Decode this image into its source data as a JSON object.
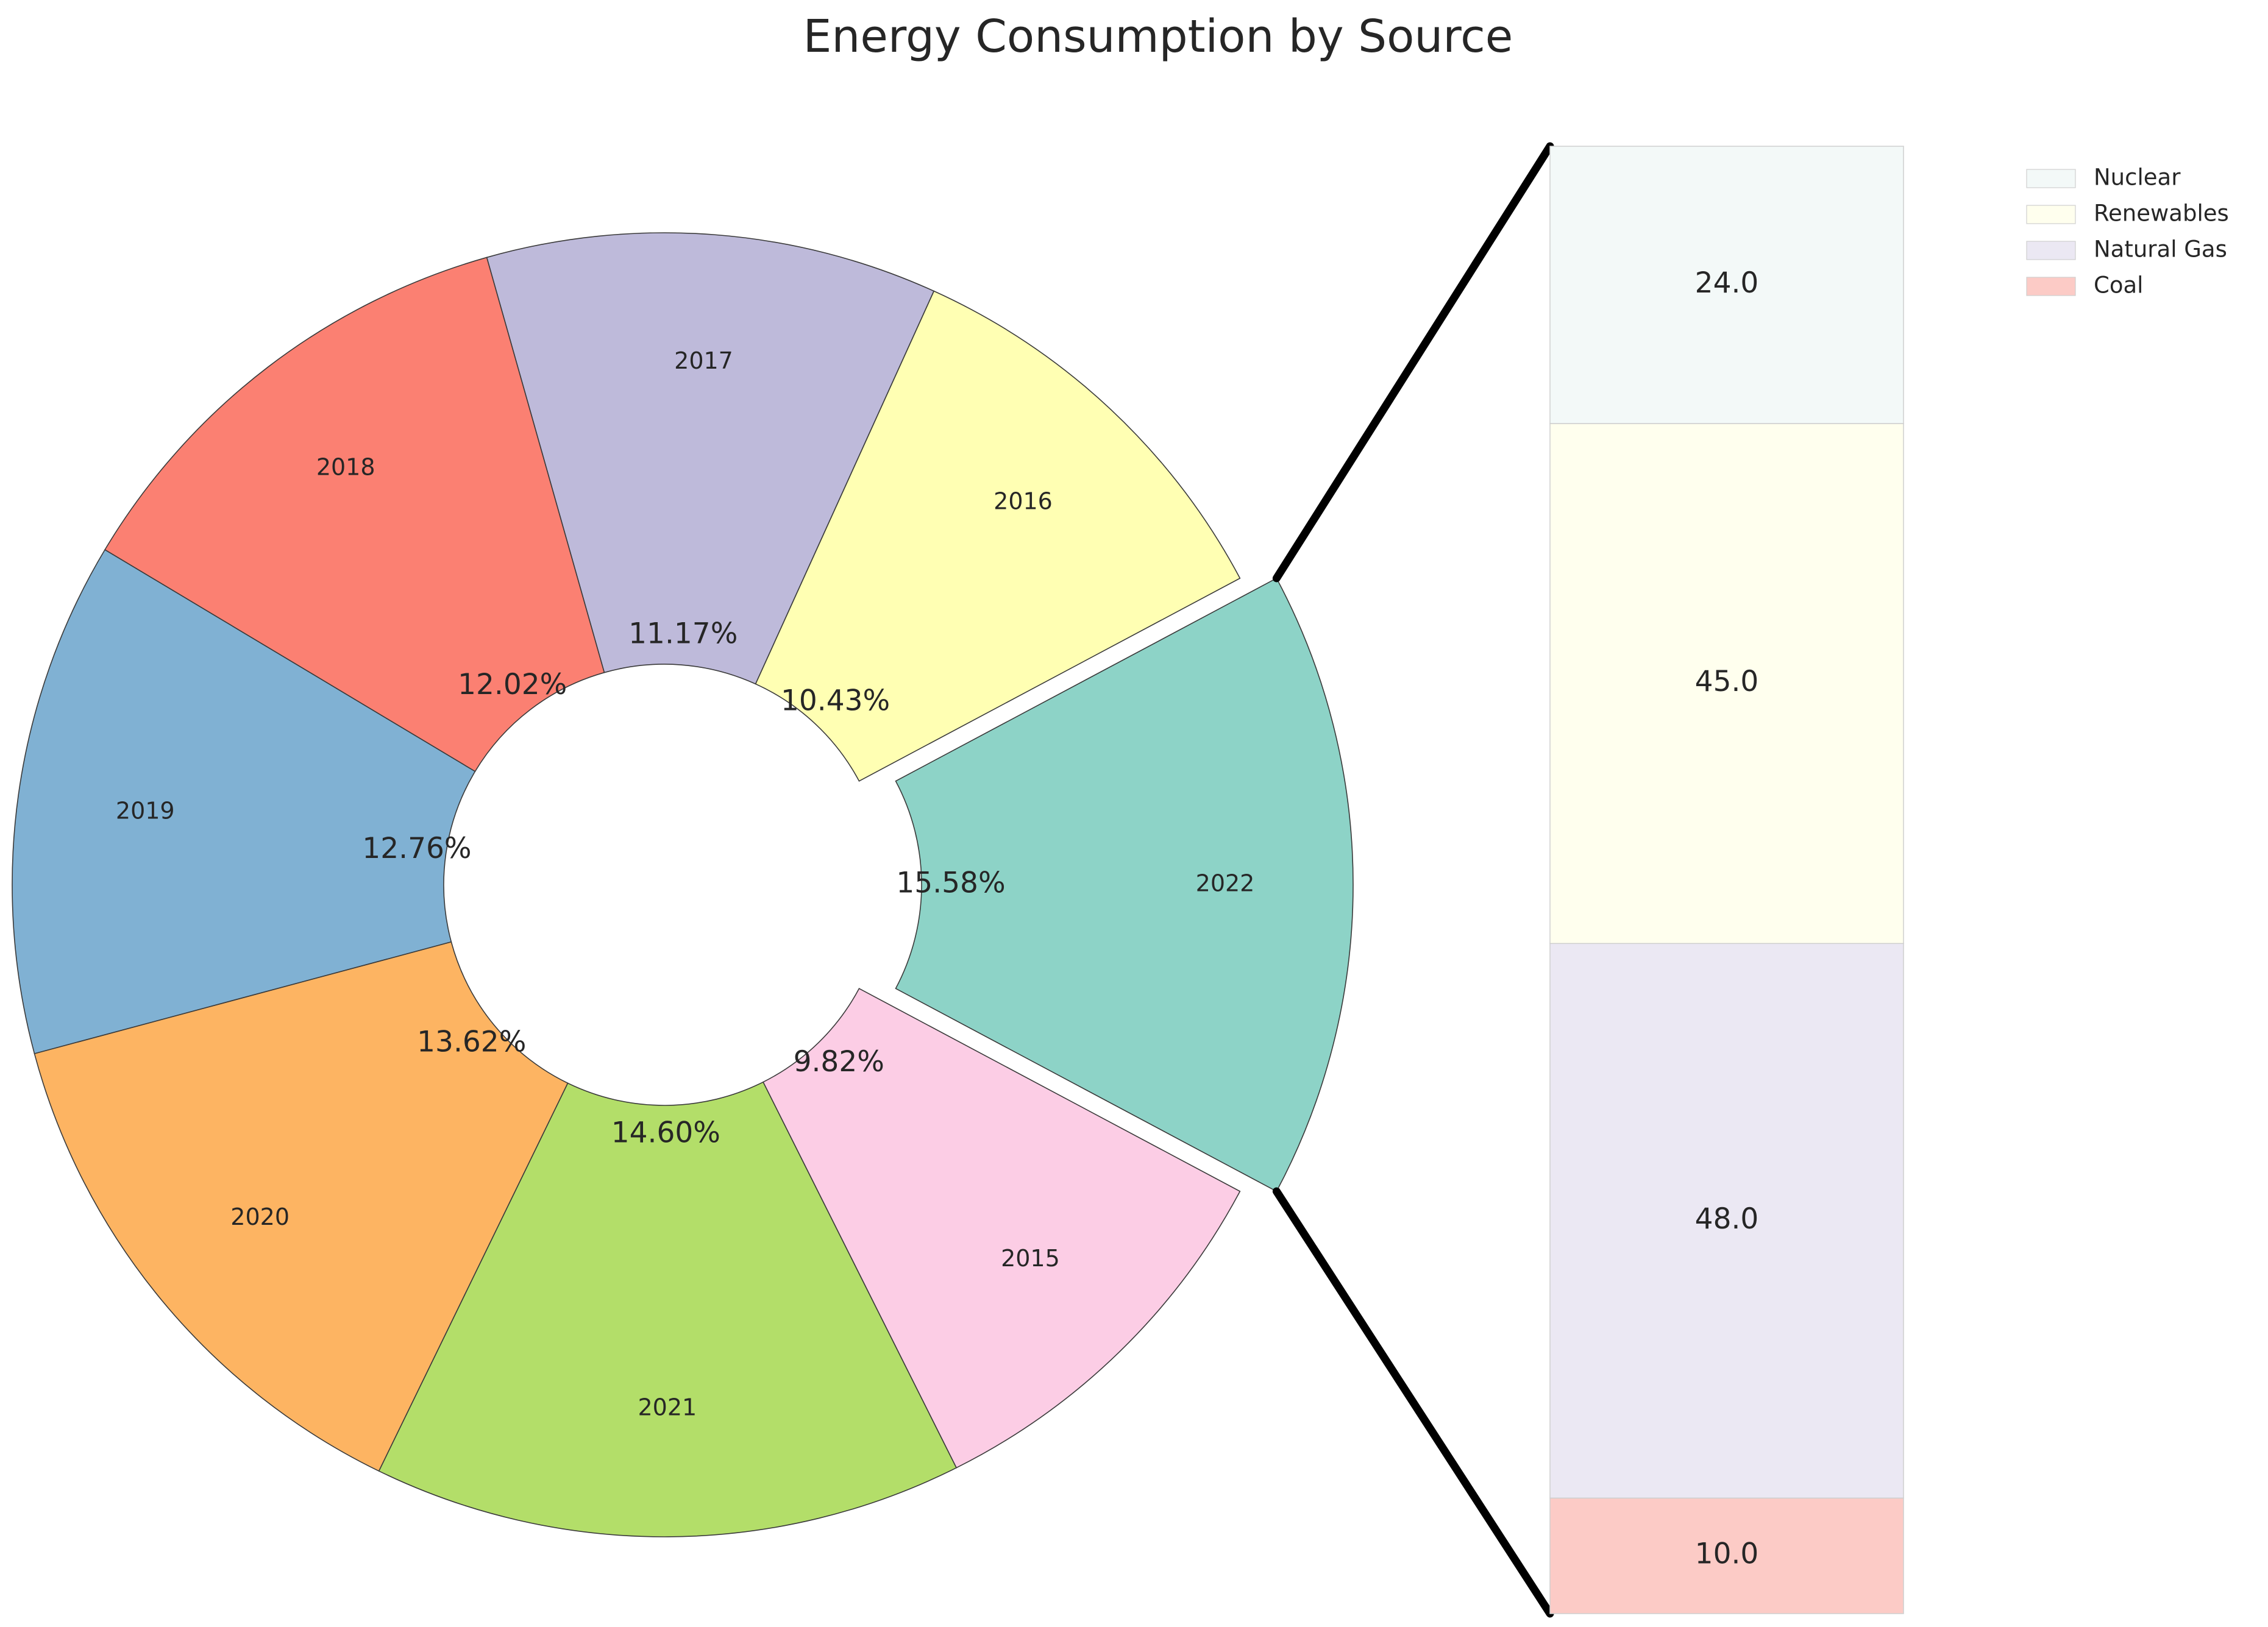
{
  "chart_data": [
    {
      "type": "pie",
      "title": "Energy Consumption by Source",
      "categories": [
        "2022",
        "2016",
        "2017",
        "2018",
        "2019",
        "2020",
        "2021",
        "2015"
      ],
      "values": [
        15.58,
        10.43,
        11.17,
        12.02,
        12.76,
        13.62,
        14.6,
        9.82
      ],
      "value_labels": [
        "15.58%",
        "10.43%",
        "11.17%",
        "12.02%",
        "12.76%",
        "13.62%",
        "14.60%",
        "9.82%"
      ],
      "colors": [
        "#8dd3c7",
        "#ffffb3",
        "#bebada",
        "#fb8072",
        "#80b1d3",
        "#fdb462",
        "#b3de69",
        "#fccde5"
      ],
      "exploded": "2022",
      "donut": true
    },
    {
      "type": "bar",
      "stacked": true,
      "series": [
        {
          "name": "Coal",
          "value": 10.0,
          "label": "10.0",
          "color": "#fccbc6"
        },
        {
          "name": "Natural Gas",
          "value": 48.0,
          "label": "48.0",
          "color": "#ebe8f3"
        },
        {
          "name": "Renewables",
          "value": 45.0,
          "label": "45.0",
          "color": "#ffffee"
        },
        {
          "name": "Nuclear",
          "value": 24.0,
          "label": "24.0",
          "color": "#f3f9f8"
        }
      ],
      "legend": {
        "placement": "top-right",
        "order": [
          "Nuclear",
          "Renewables",
          "Natural Gas",
          "Coal"
        ]
      }
    }
  ]
}
